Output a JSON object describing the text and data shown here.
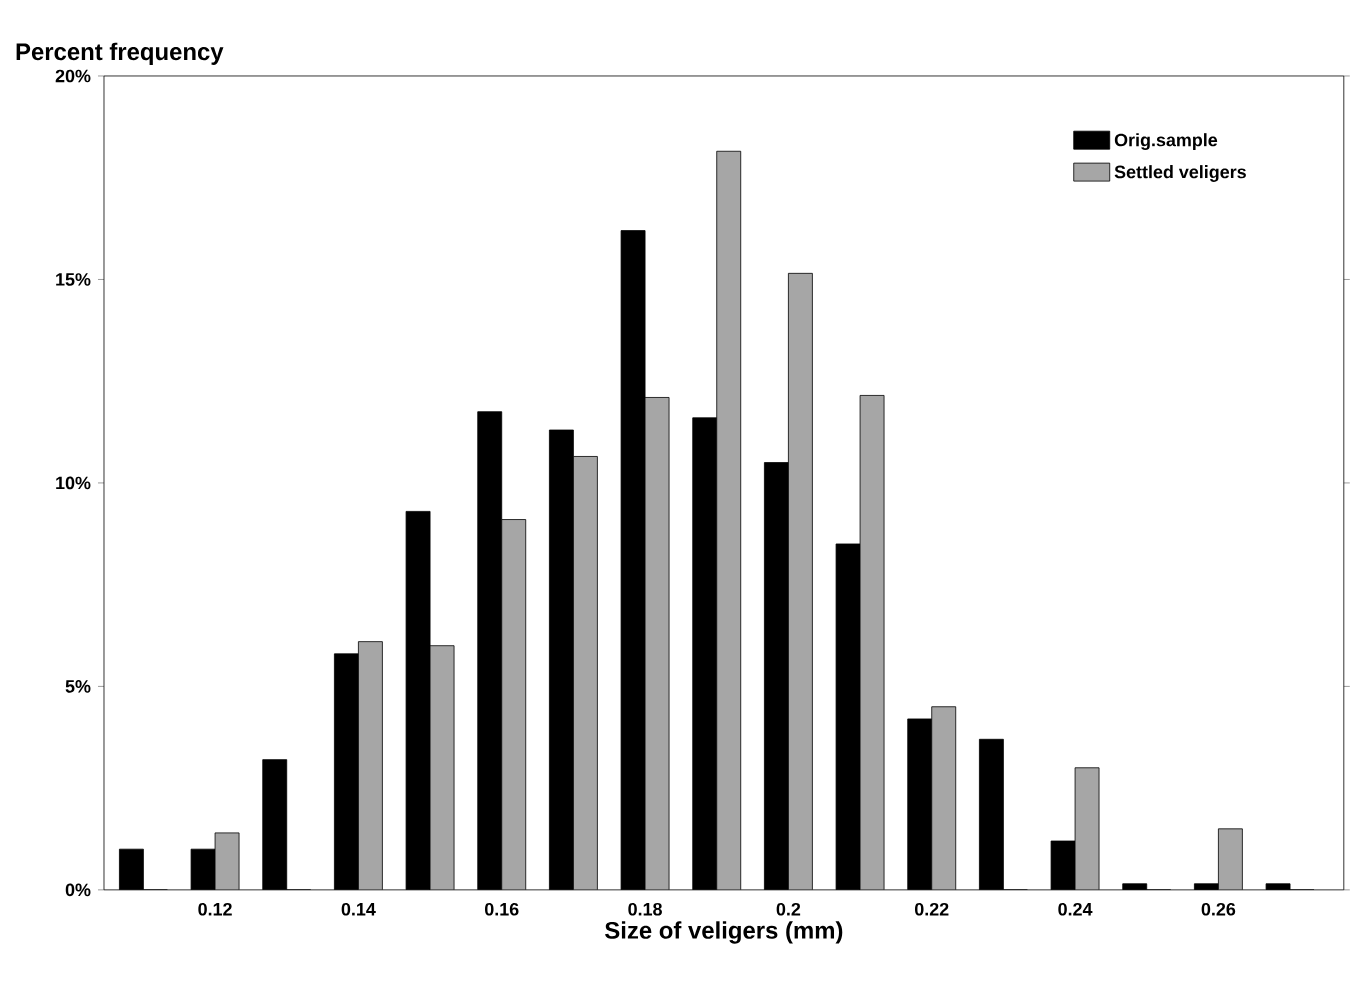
{
  "chart_data": {
    "type": "bar",
    "xlabel": "Size of veligers (mm)",
    "ylabel": "Percent frequency",
    "categories": [
      null,
      "0.12",
      null,
      "0.14",
      null,
      "0.16",
      null,
      "0.18",
      null,
      "0.2",
      null,
      "0.22",
      null,
      "0.24",
      null,
      "0.26",
      null
    ],
    "series": [
      {
        "name": "Orig.sample",
        "color": "#000000",
        "values": [
          1.0,
          1.0,
          3.2,
          5.8,
          9.3,
          11.75,
          11.3,
          16.2,
          11.6,
          10.5,
          8.5,
          4.2,
          3.7,
          1.2,
          0.15,
          0.15,
          0.15
        ]
      },
      {
        "name": "Settled veligers",
        "color": "#a6a6a6",
        "values": [
          0,
          1.4,
          0,
          6.1,
          6.0,
          9.1,
          10.65,
          12.1,
          18.15,
          15.15,
          12.15,
          4.5,
          0,
          3.0,
          0,
          1.5,
          0
        ]
      }
    ],
    "ylim": [
      0,
      20
    ],
    "yticks": [
      {
        "value": 0,
        "label": "0%"
      },
      {
        "value": 5,
        "label": "5%"
      },
      {
        "value": 10,
        "label": "10%"
      },
      {
        "value": 15,
        "label": "15%"
      },
      {
        "value": 20,
        "label": "20%"
      }
    ],
    "legend": "top right",
    "grid": false
  }
}
